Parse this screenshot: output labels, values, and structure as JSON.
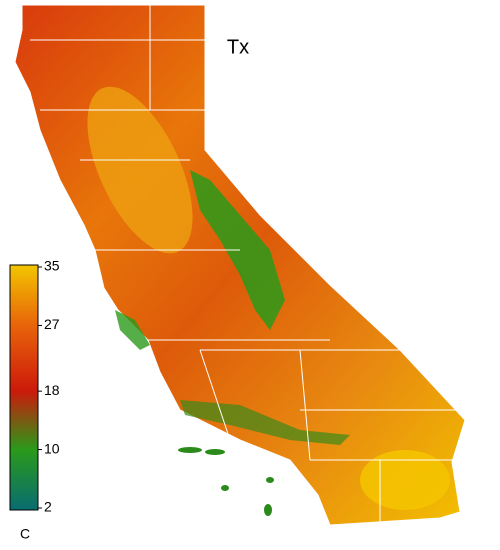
{
  "title": "Tx",
  "colorbar": {
    "lim": [
      2,
      35
    ],
    "ticks": [
      35,
      27,
      18,
      10,
      2
    ],
    "unit": "C",
    "colors": [
      "#f2c200",
      "#e8640a",
      "#cc1a0a",
      "#2a9a1a",
      "#0a6e6e"
    ]
  }
}
